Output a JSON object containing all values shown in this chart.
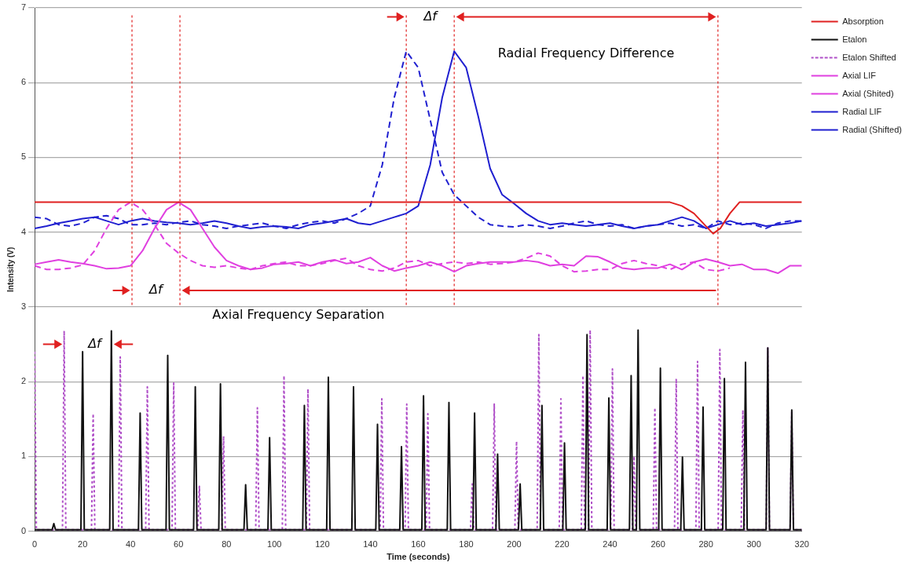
{
  "chart_data": {
    "type": "line",
    "xlabel": "Time (seconds)",
    "ylabel": "Intensity (V)",
    "xlim": [
      0,
      320
    ],
    "xticks": [
      0,
      20,
      40,
      60,
      80,
      100,
      120,
      140,
      160,
      180,
      200,
      220,
      240,
      260,
      280,
      300,
      320
    ],
    "ylim": [
      0,
      7
    ],
    "yticks": [
      0,
      1,
      2,
      3,
      4,
      5,
      6,
      7
    ],
    "grid": "y",
    "legend": "right",
    "marker": "none",
    "annotations": [
      "Δf",
      "Radial Frequency Difference",
      "Δf",
      "Axial Frequency Separation",
      "Δf"
    ],
    "ref_lines": [
      {
        "axis": "x",
        "value": 40.6,
        "color": "#e02020",
        "line_style": "dotted"
      },
      {
        "axis": "x",
        "value": 60.6,
        "color": "#e02020",
        "line_style": "dotted"
      },
      {
        "axis": "x",
        "value": 155,
        "color": "#e02020",
        "line_style": "dotted"
      },
      {
        "axis": "x",
        "value": 175,
        "color": "#e02020",
        "line_style": "dotted"
      },
      {
        "axis": "x",
        "value": 285,
        "color": "#e02020",
        "line_style": "dotted"
      }
    ],
    "series": [
      {
        "name": "Absorption",
        "color": "#e02020",
        "line_style": "solid",
        "x": [
          0,
          265,
          270,
          275,
          280,
          283,
          286,
          290,
          294,
          320
        ],
        "values": [
          4.4,
          4.4,
          4.35,
          4.25,
          4.08,
          3.98,
          4.05,
          4.25,
          4.4,
          4.4
        ]
      },
      {
        "name": "Etalon",
        "color": "#111111",
        "line_style": "solid",
        "x": [
          0,
          7.3,
          8,
          8.7,
          19.3,
          20,
          20.7,
          31.3,
          32,
          32.7,
          43.3,
          44,
          44.7,
          54.8,
          55.5,
          56.2,
          66.3,
          67,
          67.7,
          76.8,
          77.5,
          78.2,
          87.3,
          88,
          88.7,
          97.3,
          98,
          98.7,
          111.8,
          112.5,
          113.2,
          121.8,
          122.5,
          123.2,
          132.3,
          133,
          133.7,
          142.3,
          143,
          143.7,
          152.3,
          153,
          153.7,
          161.5,
          162.2,
          162.9,
          172.1,
          172.8,
          173.5,
          182.8,
          183.5,
          184.2,
          192.4,
          193.1,
          193.8,
          201.8,
          202.5,
          203.2,
          210.9,
          211.6,
          212.3,
          220.3,
          221,
          221.7,
          229.7,
          230.4,
          231.1,
          238.8,
          239.5,
          240.2,
          248.1,
          248.8,
          249.5,
          251,
          251.7,
          252.4,
          260.3,
          261,
          261.7,
          269.5,
          270.2,
          270.9,
          278.1,
          278.8,
          279.5,
          287,
          287.7,
          288.4,
          295.8,
          296.5,
          297.2,
          305.1,
          305.8,
          306.5,
          315.1,
          315.8,
          316.5,
          320
        ],
        "values": [
          0.02,
          0.02,
          0.1,
          0.02,
          0.02,
          2.4,
          0.02,
          0.02,
          2.68,
          0.02,
          0.02,
          1.58,
          0.02,
          0.02,
          2.35,
          0.02,
          0.02,
          1.93,
          0.02,
          0.02,
          1.97,
          0.02,
          0.02,
          0.62,
          0.02,
          0.02,
          1.25,
          0.02,
          0.02,
          1.68,
          0.02,
          0.02,
          2.06,
          0.02,
          0.02,
          1.93,
          0.02,
          0.02,
          1.43,
          0.02,
          0.02,
          1.13,
          0.02,
          0.02,
          1.81,
          0.02,
          0.02,
          1.72,
          0.02,
          0.02,
          1.58,
          0.02,
          0.02,
          1.03,
          0.02,
          0.02,
          0.63,
          0.02,
          0.02,
          1.68,
          0.02,
          0.02,
          1.18,
          0.02,
          0.02,
          2.63,
          0.02,
          0.02,
          1.78,
          0.02,
          0.02,
          2.08,
          0.02,
          0.02,
          2.69,
          0.02,
          0.02,
          2.18,
          0.02,
          0.02,
          0.99,
          0.02,
          0.02,
          1.66,
          0.02,
          0.02,
          2.04,
          0.02,
          0.02,
          2.26,
          0.02,
          0.02,
          2.45,
          0.02,
          0.02,
          1.62,
          0.02,
          0.02
        ]
      },
      {
        "name": "Etalon Shifted",
        "color": "#b050c8",
        "line_style": "dotted",
        "x": [
          0,
          0.7,
          11.6,
          12.3,
          13,
          23.7,
          24.4,
          25.1,
          35,
          35.7,
          36.4,
          46.3,
          47,
          47.7,
          57.3,
          58,
          58.7,
          68,
          68.7,
          69.4,
          78.1,
          78.8,
          79.5,
          92.2,
          92.9,
          93.6,
          103.3,
          104,
          104.7,
          113.3,
          114,
          114.7,
          144.1,
          144.8,
          145.5,
          154.5,
          155.2,
          155.9,
          163.3,
          164,
          164.7,
          181.8,
          182.5,
          183.2,
          191,
          191.7,
          192.4,
          200.3,
          201,
          201.7,
          209.6,
          210.3,
          211,
          218.8,
          219.5,
          220.2,
          228,
          228.7,
          229.4,
          231,
          231.7,
          232.4,
          240.3,
          241,
          241.7,
          249.3,
          250,
          250.7,
          258,
          258.7,
          259.4,
          266.9,
          267.6,
          268.3,
          275.8,
          276.5,
          277.2,
          285.1,
          285.8,
          286.5,
          294.7,
          295.4,
          296.1,
          305.1,
          305.8,
          306.5,
          315.1,
          315.8,
          316.5,
          320
        ],
        "values": [
          2.4,
          0.02,
          0.02,
          2.68,
          0.02,
          0.02,
          1.57,
          0.02,
          0.02,
          2.33,
          0.02,
          0.02,
          1.93,
          0.02,
          0.02,
          1.98,
          0.02,
          0.02,
          0.6,
          0.02,
          0.02,
          1.27,
          0.02,
          0.02,
          1.65,
          0.02,
          0.02,
          2.08,
          0.02,
          0.02,
          1.9,
          0.02,
          0.02,
          1.77,
          0.02,
          0.02,
          1.7,
          0.02,
          0.02,
          1.57,
          0.02,
          0.02,
          0.63,
          0.02,
          0.02,
          1.7,
          0.02,
          0.02,
          1.2,
          0.02,
          0.02,
          2.63,
          0.02,
          0.02,
          1.77,
          0.02,
          0.02,
          2.08,
          0.02,
          0.02,
          2.69,
          0.02,
          0.02,
          2.17,
          0.02,
          0.02,
          1.0,
          0.02,
          0.02,
          1.65,
          0.02,
          0.02,
          2.04,
          0.02,
          0.02,
          2.27,
          0.02,
          0.02,
          2.43,
          0.02,
          0.02,
          1.62,
          0.02,
          0.02,
          2.45,
          0.02,
          0.02,
          1.6,
          0.02,
          0.02
        ]
      },
      {
        "name": "Axial LIF",
        "color": "#e040e0",
        "line_style": "solid",
        "x": [
          0,
          5,
          10,
          15,
          20,
          25,
          30,
          35,
          40,
          45,
          50,
          55,
          60,
          65,
          70,
          75,
          80,
          85,
          90,
          95,
          100,
          105,
          110,
          115,
          120,
          125,
          130,
          135,
          140,
          145,
          150,
          155,
          160,
          165,
          170,
          175,
          180,
          185,
          190,
          195,
          200,
          205,
          210,
          215,
          220,
          225,
          230,
          235,
          240,
          245,
          250,
          255,
          260,
          265,
          270,
          275,
          280,
          285,
          290,
          295,
          300,
          305,
          310,
          315,
          320
        ],
        "values": [
          3.57,
          3.6,
          3.63,
          3.6,
          3.58,
          3.55,
          3.51,
          3.52,
          3.55,
          3.75,
          4.05,
          4.3,
          4.4,
          4.3,
          4.05,
          3.8,
          3.62,
          3.55,
          3.5,
          3.52,
          3.57,
          3.58,
          3.6,
          3.55,
          3.6,
          3.63,
          3.58,
          3.6,
          3.66,
          3.55,
          3.48,
          3.52,
          3.55,
          3.6,
          3.55,
          3.47,
          3.55,
          3.58,
          3.6,
          3.6,
          3.6,
          3.62,
          3.6,
          3.55,
          3.57,
          3.55,
          3.68,
          3.67,
          3.6,
          3.52,
          3.5,
          3.52,
          3.52,
          3.57,
          3.5,
          3.6,
          3.64,
          3.6,
          3.55,
          3.57,
          3.5,
          3.5,
          3.45,
          3.55,
          3.55
        ]
      },
      {
        "name": "Axial (Shited)",
        "color": "#e040e0",
        "line_style": "dashed",
        "x": [
          0,
          5,
          10,
          15,
          20,
          25,
          30,
          35,
          40,
          45,
          50,
          55,
          60,
          65,
          70,
          75,
          80,
          85,
          90,
          95,
          100,
          105,
          110,
          115,
          120,
          125,
          130,
          135,
          140,
          145,
          150,
          155,
          160,
          165,
          170,
          175,
          180,
          185,
          190,
          195,
          200,
          205,
          210,
          215,
          220,
          225,
          230,
          235,
          240,
          245,
          250,
          255,
          260,
          265,
          270,
          275,
          280,
          285,
          290
        ],
        "values": [
          3.55,
          3.5,
          3.5,
          3.52,
          3.56,
          3.75,
          4.05,
          4.3,
          4.4,
          4.3,
          4.1,
          3.85,
          3.72,
          3.62,
          3.55,
          3.53,
          3.55,
          3.52,
          3.5,
          3.55,
          3.58,
          3.6,
          3.55,
          3.55,
          3.58,
          3.62,
          3.65,
          3.55,
          3.5,
          3.48,
          3.52,
          3.6,
          3.62,
          3.55,
          3.58,
          3.6,
          3.58,
          3.6,
          3.57,
          3.58,
          3.6,
          3.65,
          3.72,
          3.68,
          3.55,
          3.47,
          3.48,
          3.5,
          3.5,
          3.58,
          3.62,
          3.58,
          3.55,
          3.5,
          3.57,
          3.6,
          3.5,
          3.48,
          3.52
        ]
      },
      {
        "name": "Radial LIF",
        "color": "#2020d0",
        "line_style": "solid",
        "x": [
          0,
          5,
          10,
          15,
          20,
          25,
          30,
          35,
          40,
          45,
          50,
          55,
          60,
          65,
          70,
          75,
          80,
          85,
          90,
          95,
          100,
          105,
          110,
          115,
          120,
          125,
          130,
          135,
          140,
          145,
          150,
          155,
          160,
          165,
          170,
          175,
          180,
          185,
          190,
          195,
          200,
          205,
          210,
          215,
          220,
          225,
          230,
          235,
          240,
          245,
          250,
          255,
          260,
          265,
          270,
          275,
          280,
          285,
          290,
          295,
          300,
          305,
          310,
          315,
          320
        ],
        "values": [
          4.05,
          4.08,
          4.12,
          4.15,
          4.18,
          4.2,
          4.15,
          4.1,
          4.15,
          4.18,
          4.15,
          4.13,
          4.12,
          4.1,
          4.12,
          4.15,
          4.12,
          4.08,
          4.05,
          4.07,
          4.08,
          4.07,
          4.05,
          4.1,
          4.12,
          4.15,
          4.18,
          4.12,
          4.1,
          4.15,
          4.2,
          4.25,
          4.35,
          4.9,
          5.8,
          6.42,
          6.2,
          5.55,
          4.85,
          4.5,
          4.38,
          4.25,
          4.15,
          4.1,
          4.12,
          4.1,
          4.08,
          4.1,
          4.12,
          4.08,
          4.05,
          4.08,
          4.1,
          4.15,
          4.2,
          4.15,
          4.05,
          4.1,
          4.15,
          4.1,
          4.12,
          4.08,
          4.1,
          4.12,
          4.15
        ]
      },
      {
        "name": "Radial (Shifted)",
        "color": "#2020d0",
        "line_style": "dashed",
        "x": [
          0,
          5,
          10,
          15,
          20,
          25,
          30,
          35,
          40,
          45,
          50,
          55,
          60,
          65,
          70,
          75,
          80,
          85,
          90,
          95,
          100,
          105,
          110,
          115,
          120,
          125,
          130,
          135,
          140,
          145,
          150,
          155,
          160,
          165,
          170,
          175,
          180,
          185,
          190,
          195,
          200,
          205,
          210,
          215,
          220,
          225,
          230,
          235,
          240,
          245,
          250,
          255,
          260,
          265,
          270,
          275,
          280,
          285,
          290,
          295,
          300,
          305,
          310,
          315,
          320
        ],
        "values": [
          4.2,
          4.18,
          4.1,
          4.08,
          4.12,
          4.2,
          4.22,
          4.18,
          4.1,
          4.1,
          4.12,
          4.1,
          4.13,
          4.15,
          4.1,
          4.08,
          4.05,
          4.08,
          4.1,
          4.12,
          4.08,
          4.05,
          4.1,
          4.13,
          4.15,
          4.12,
          4.18,
          4.25,
          4.35,
          4.9,
          5.8,
          6.42,
          6.2,
          5.5,
          4.8,
          4.5,
          4.35,
          4.2,
          4.1,
          4.08,
          4.07,
          4.1,
          4.08,
          4.05,
          4.08,
          4.12,
          4.15,
          4.1,
          4.08,
          4.1,
          4.05,
          4.08,
          4.1,
          4.12,
          4.08,
          4.1,
          4.05,
          4.15,
          4.1,
          4.12,
          4.1,
          4.05,
          4.12,
          4.15,
          4.15
        ]
      }
    ]
  }
}
